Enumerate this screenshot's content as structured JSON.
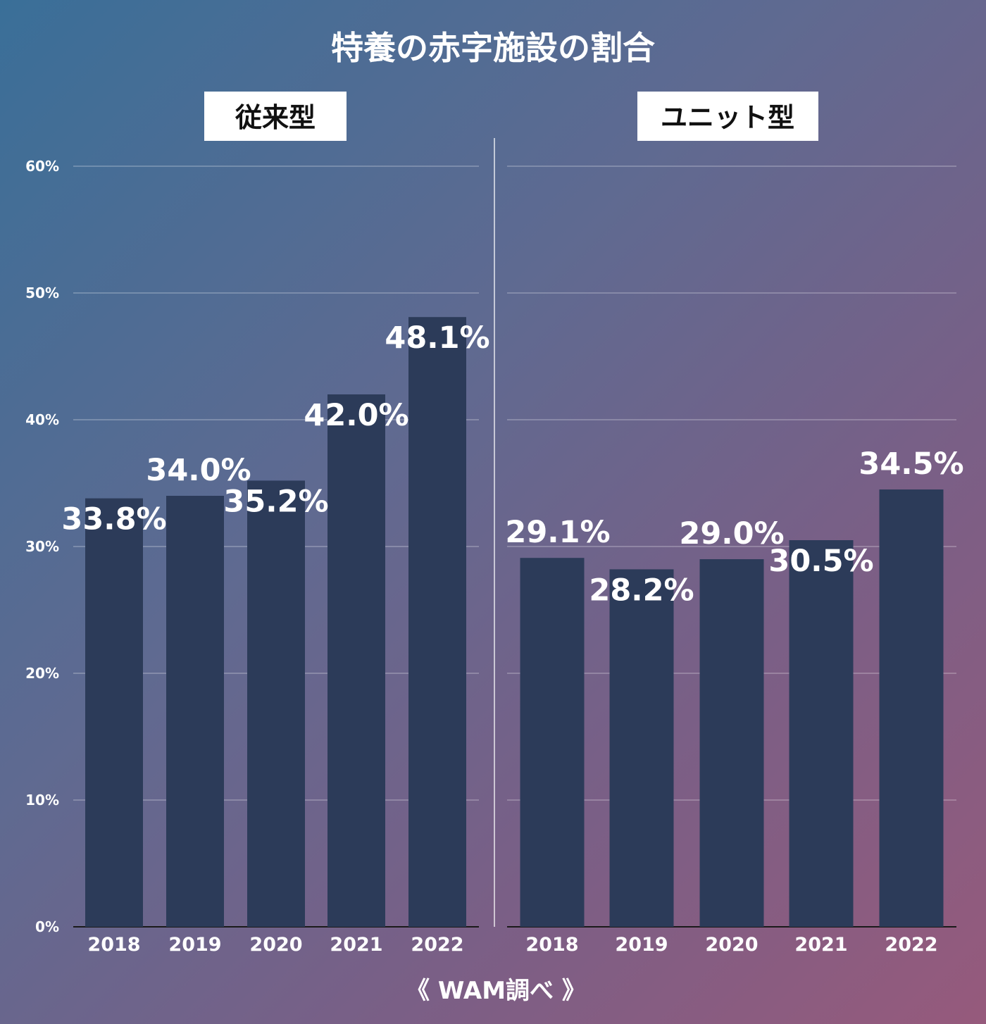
{
  "title": "特養の赤字施設の割合",
  "source": "《 WAM調べ 》",
  "chart_data": [
    {
      "type": "bar",
      "title": "従来型",
      "categories": [
        "2018",
        "2019",
        "2020",
        "2021",
        "2022"
      ],
      "values": [
        33.8,
        34.0,
        35.2,
        42.0,
        48.1
      ],
      "data_labels": [
        "33.8%",
        "34.0%",
        "35.2%",
        "42.0%",
        "48.1%"
      ],
      "ylim": [
        0,
        60
      ],
      "yticks": [
        "0%",
        "10%",
        "20%",
        "30%",
        "40%",
        "50%",
        "60%"
      ],
      "grid": true
    },
    {
      "type": "bar",
      "title": "ユニット型",
      "categories": [
        "2018",
        "2019",
        "2020",
        "2021",
        "2022"
      ],
      "values": [
        29.1,
        28.2,
        29.0,
        30.5,
        34.5
      ],
      "data_labels": [
        "29.1%",
        "28.2%",
        "29.0%",
        "30.5%",
        "34.5%"
      ],
      "ylim": [
        0,
        60
      ],
      "grid": true
    }
  ],
  "colors": {
    "bar": "#2c3b59",
    "text": "#ffffff"
  }
}
